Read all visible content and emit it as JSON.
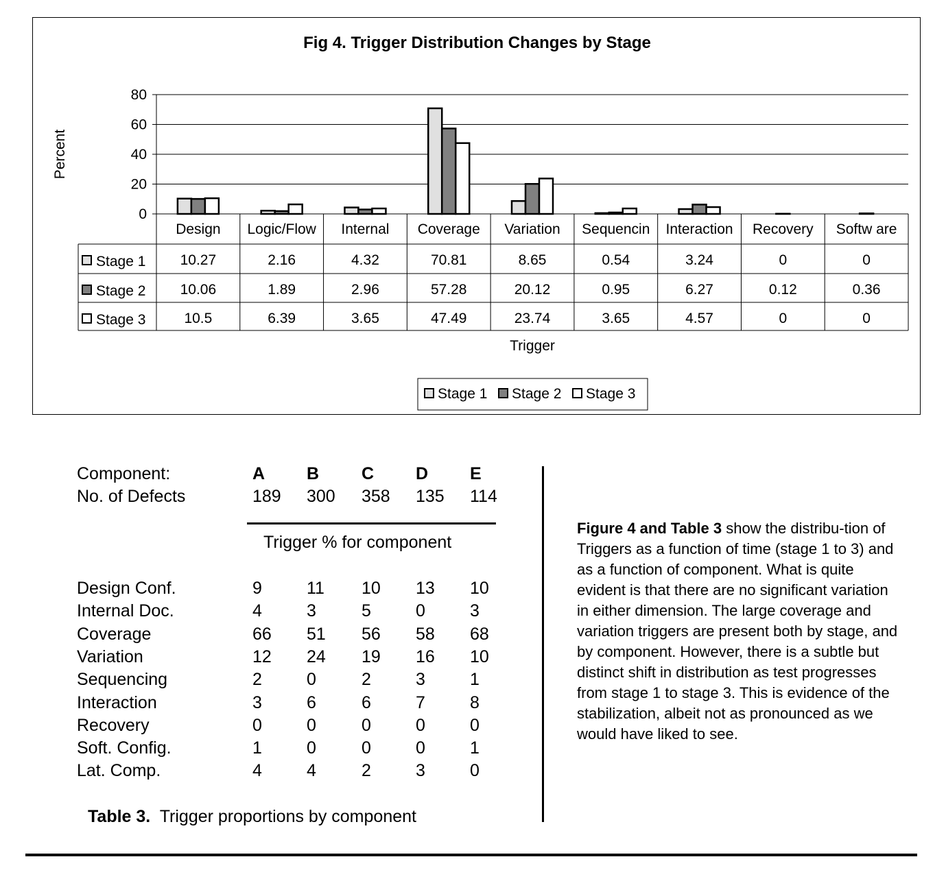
{
  "chart_data": {
    "type": "bar",
    "title": "Fig 4.  Trigger Distribution Changes by Stage",
    "xlabel": "Trigger",
    "ylabel": "Percent",
    "ylim": [
      0,
      80
    ],
    "yticks": [
      0,
      20,
      40,
      60,
      80
    ],
    "grid": true,
    "legend_placement": "bottom",
    "categories": [
      "Design",
      "Logic/Flow",
      "Internal",
      "Coverage",
      "Variation",
      "Sequencin",
      "Interaction",
      "Recovery",
      "Softw are"
    ],
    "series": [
      {
        "name": "Stage 1",
        "color": "#e0e0e0",
        "values": [
          10.27,
          2.16,
          4.32,
          70.81,
          8.65,
          0.54,
          3.24,
          0,
          0
        ]
      },
      {
        "name": "Stage 2",
        "color": "#808080",
        "values": [
          10.06,
          1.89,
          2.96,
          57.28,
          20.12,
          0.95,
          6.27,
          0.12,
          0.36
        ]
      },
      {
        "name": "Stage 3",
        "color": "#ffffff",
        "values": [
          10.5,
          6.39,
          3.65,
          47.49,
          23.74,
          3.65,
          4.57,
          0,
          0
        ]
      }
    ],
    "data_table_text": [
      [
        "10.27",
        "2.16",
        "4.32",
        "70.81",
        "8.65",
        "0.54",
        "3.24",
        "0",
        "0"
      ],
      [
        "10.06",
        "1.89",
        "2.96",
        "57.28",
        "20.12",
        "0.95",
        "6.27",
        "0.12",
        "0.36"
      ],
      [
        "10.5",
        "6.39",
        "3.65",
        "47.49",
        "23.74",
        "3.65",
        "4.57",
        "0",
        "0"
      ]
    ]
  },
  "table3": {
    "component_label": "Component:",
    "components": [
      "A",
      "B",
      "C",
      "D",
      "E"
    ],
    "defects_label": "No. of Defects",
    "defects": [
      "189",
      "300",
      "358",
      "135",
      "114"
    ],
    "subheader": "Trigger % for component",
    "rows": [
      {
        "label": "Design Conf.",
        "values": [
          "9",
          "11",
          "10",
          "13",
          "10"
        ]
      },
      {
        "label": "Internal Doc.",
        "values": [
          "4",
          "3",
          "5",
          "0",
          "3"
        ]
      },
      {
        "label": "Coverage",
        "values": [
          "66",
          "51",
          "56",
          "58",
          "68"
        ]
      },
      {
        "label": "Variation",
        "values": [
          "12",
          "24",
          "19",
          "16",
          "10"
        ]
      },
      {
        "label": "Sequencing",
        "values": [
          "2",
          "0",
          "2",
          "3",
          "1"
        ]
      },
      {
        "label": "Interaction",
        "values": [
          "3",
          "6",
          "6",
          "7",
          "8"
        ]
      },
      {
        "label": "Recovery",
        "values": [
          "0",
          "0",
          "0",
          "0",
          "0"
        ]
      },
      {
        "label": "Soft. Config.",
        "values": [
          "1",
          "0",
          "0",
          "0",
          "1"
        ]
      },
      {
        "label": "Lat. Comp.",
        "values": [
          "4",
          "4",
          "2",
          "3",
          "0"
        ]
      }
    ],
    "caption_bold": "Table 3.",
    "caption_text": "Trigger proportions by component"
  },
  "paragraph": {
    "bold": "Figure 4 and Table 3",
    "text": " show the distribu-tion of Triggers as a function of  time (stage 1 to 3) and as a function of component.  What is quite evident is that there are no significant  variation in either dimension. The large coverage and variation triggers are present both by stage, and by component. However, there is a subtle but distinct shift in distribution as test progresses from stage 1 to stage 3. This is evidence of the stabilization, albeit  not as pronounced as we would have liked to see."
  }
}
